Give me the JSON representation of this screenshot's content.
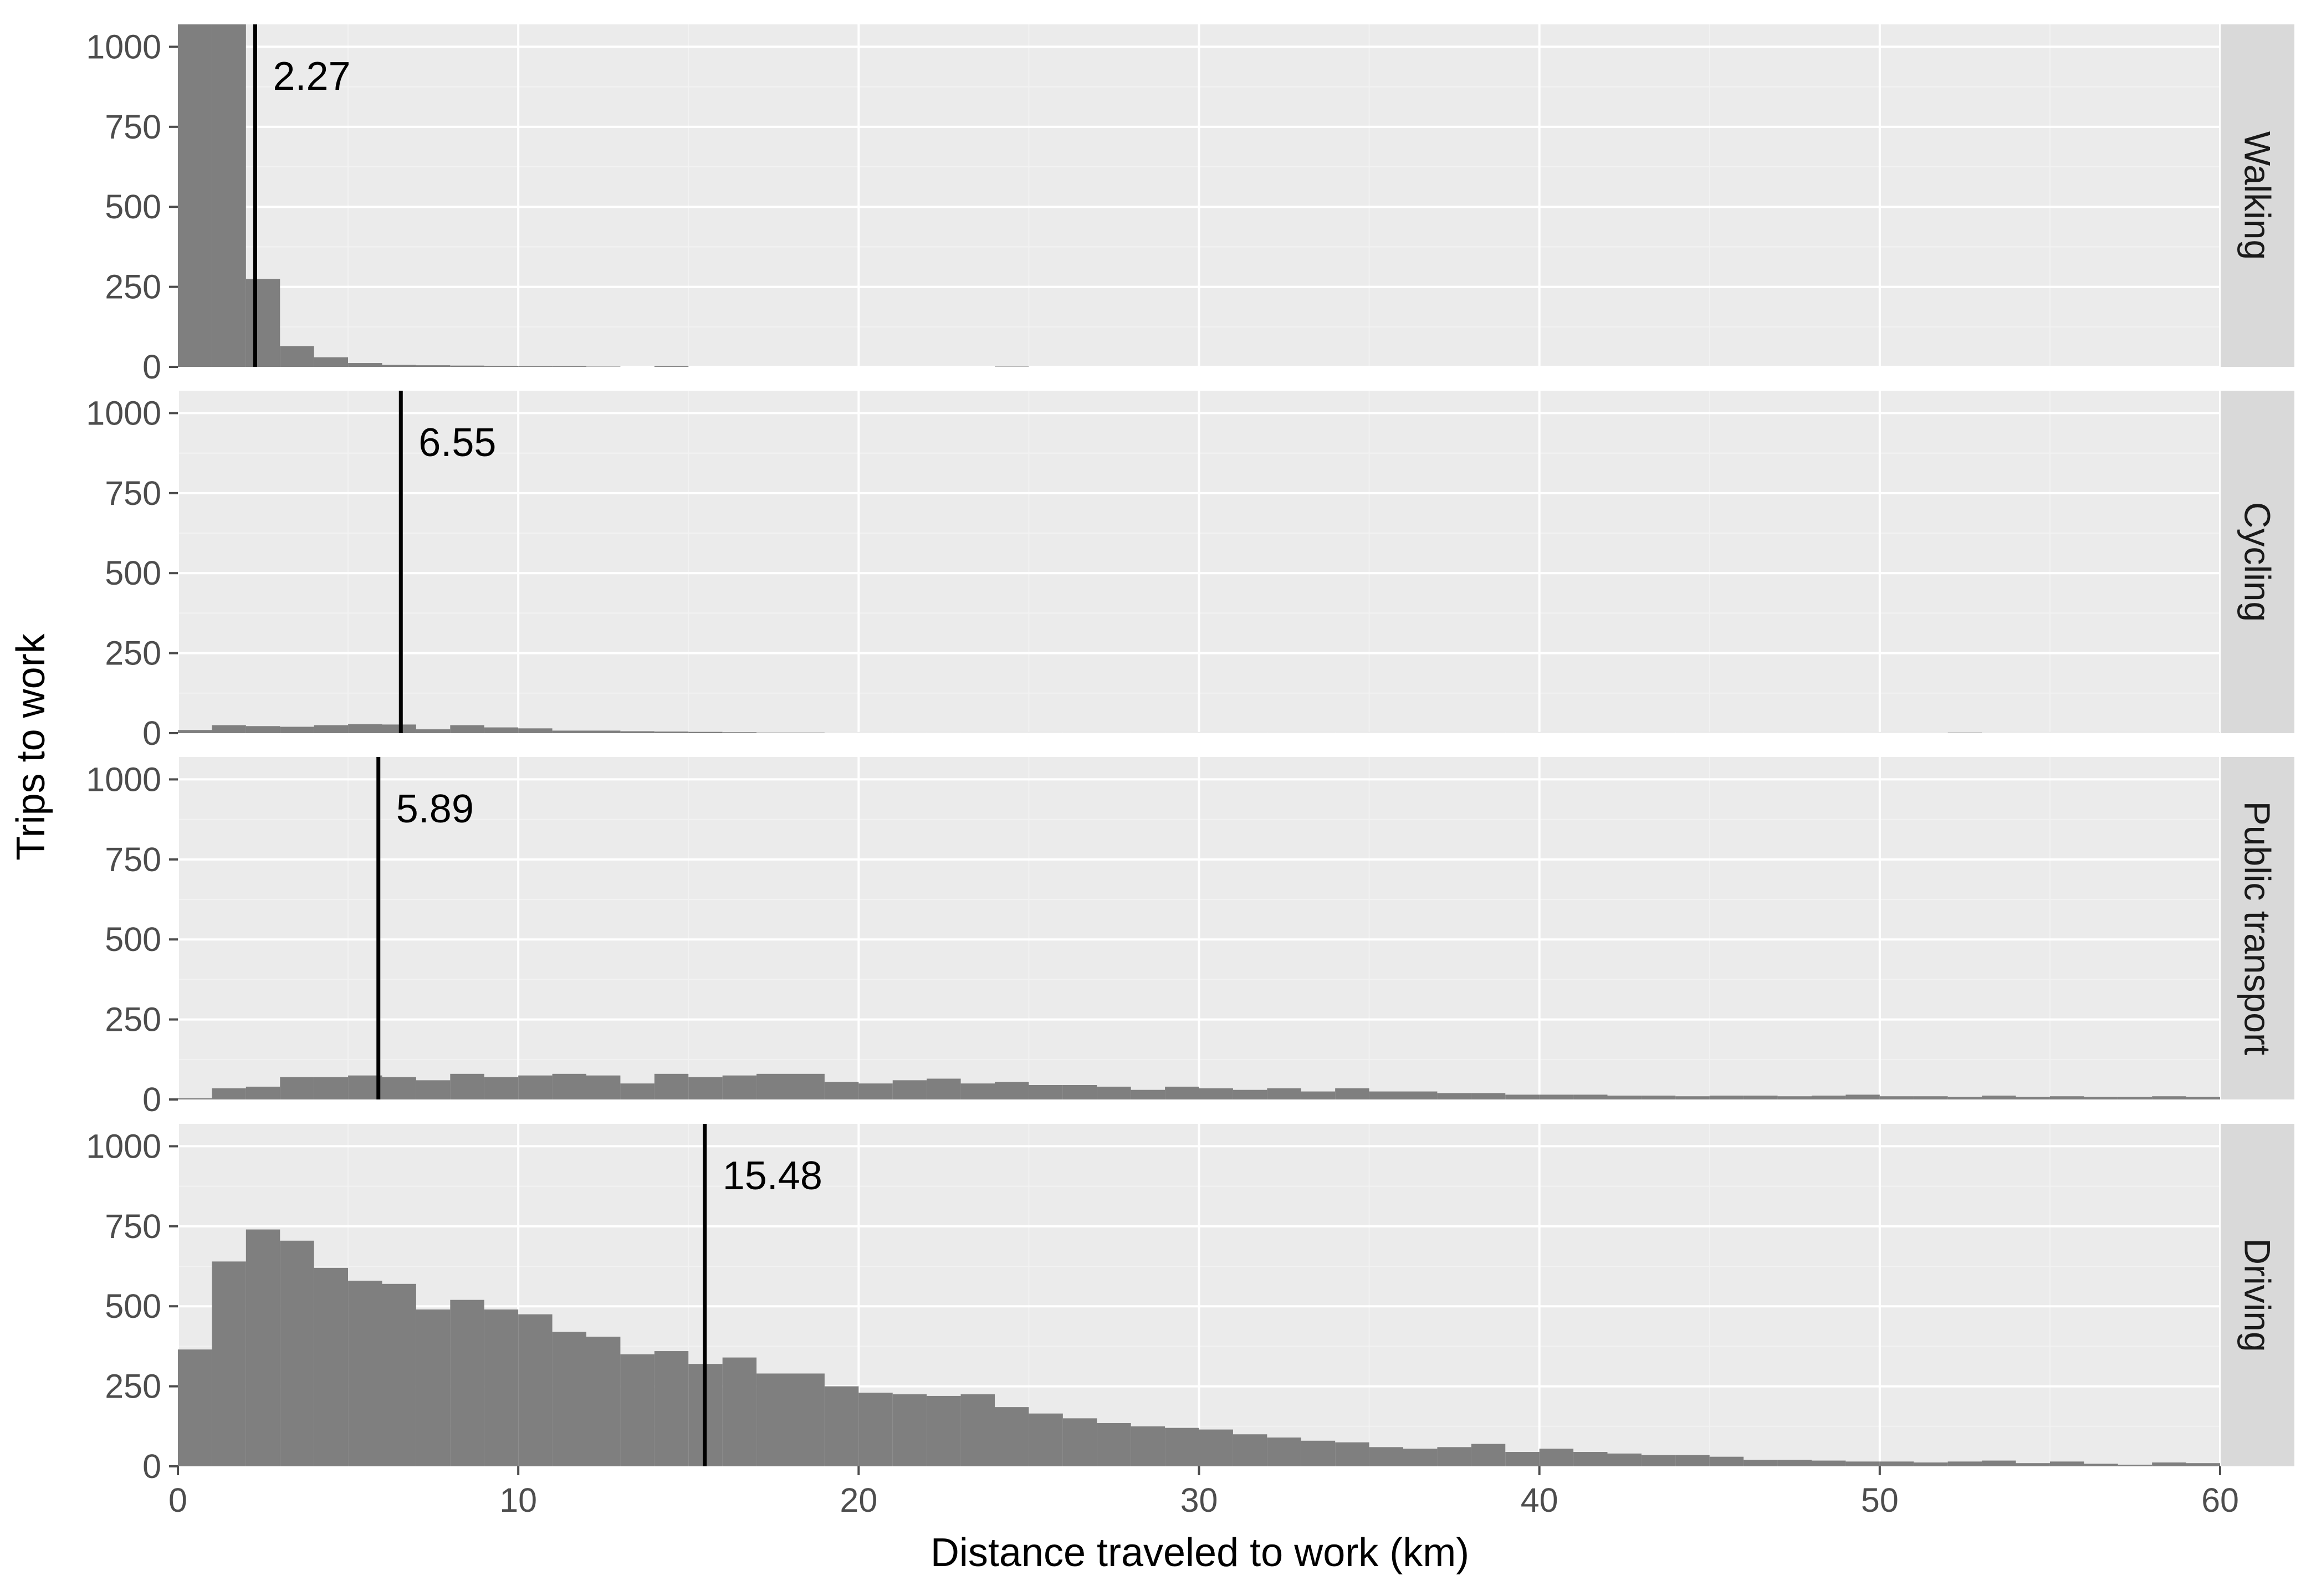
{
  "chart_data": {
    "type": "histogram",
    "xlabel": "Distance traveled to work (km)",
    "ylabel": "Trips to work",
    "xlim": [
      0,
      60
    ],
    "ylim": [
      0,
      1070
    ],
    "x_ticks": [
      0,
      10,
      20,
      30,
      40,
      50,
      60
    ],
    "y_ticks": [
      0,
      250,
      500,
      750,
      1000
    ],
    "bin_width": 1,
    "grid": true,
    "facet_layout": "rows",
    "colors": {
      "panel_background": "#ebebeb",
      "grid": "#ffffff",
      "bars": "#7f7f7f",
      "strip_background": "#d9d9d9",
      "mean_line": "#000000"
    },
    "facets": [
      {
        "name": "Walking",
        "mean": 2.27,
        "mean_label": "2.27",
        "values": [
          1070,
          1070,
          275,
          65,
          30,
          12,
          6,
          5,
          4,
          3,
          2,
          2,
          1,
          0,
          2,
          0,
          0,
          0,
          0,
          0,
          0,
          0,
          0,
          0,
          1,
          0,
          0,
          0,
          0,
          0,
          0,
          0,
          0,
          0,
          0,
          0,
          0,
          0,
          0,
          0,
          0,
          0,
          0,
          0,
          0,
          0,
          0,
          0,
          0,
          0,
          0,
          0,
          0,
          0,
          0,
          0,
          0,
          0,
          0,
          0
        ]
      },
      {
        "name": "Cycling",
        "mean": 6.55,
        "mean_label": "6.55",
        "values": [
          10,
          25,
          22,
          20,
          25,
          28,
          27,
          12,
          25,
          18,
          15,
          8,
          8,
          6,
          5,
          4,
          3,
          2,
          2,
          1,
          1,
          1,
          1,
          1,
          1,
          1,
          1,
          1,
          1,
          1,
          1,
          1,
          1,
          1,
          1,
          1,
          1,
          1,
          1,
          1,
          1,
          1,
          1,
          1,
          1,
          1,
          1,
          1,
          1,
          1,
          1,
          1,
          2,
          1,
          1,
          1,
          1,
          1,
          1,
          1
        ]
      },
      {
        "name": "Public transport",
        "mean": 5.89,
        "mean_label": "5.89",
        "values": [
          4,
          35,
          40,
          70,
          70,
          75,
          70,
          60,
          80,
          70,
          75,
          80,
          75,
          50,
          80,
          70,
          75,
          80,
          80,
          55,
          50,
          60,
          65,
          50,
          55,
          45,
          45,
          40,
          30,
          40,
          35,
          30,
          35,
          25,
          35,
          25,
          25,
          20,
          20,
          15,
          15,
          15,
          12,
          12,
          10,
          12,
          12,
          10,
          12,
          15,
          10,
          10,
          8,
          12,
          8,
          10,
          8,
          8,
          10,
          8
        ]
      },
      {
        "name": "Driving",
        "mean": 15.48,
        "mean_label": "15.48",
        "values": [
          365,
          640,
          740,
          705,
          620,
          580,
          570,
          490,
          520,
          490,
          475,
          420,
          405,
          350,
          360,
          320,
          340,
          290,
          290,
          250,
          230,
          225,
          220,
          225,
          185,
          165,
          150,
          135,
          125,
          120,
          115,
          100,
          90,
          80,
          75,
          60,
          55,
          60,
          70,
          45,
          55,
          45,
          40,
          35,
          35,
          30,
          20,
          20,
          18,
          15,
          15,
          12,
          15,
          18,
          10,
          15,
          8,
          5,
          12,
          10
        ]
      }
    ]
  }
}
